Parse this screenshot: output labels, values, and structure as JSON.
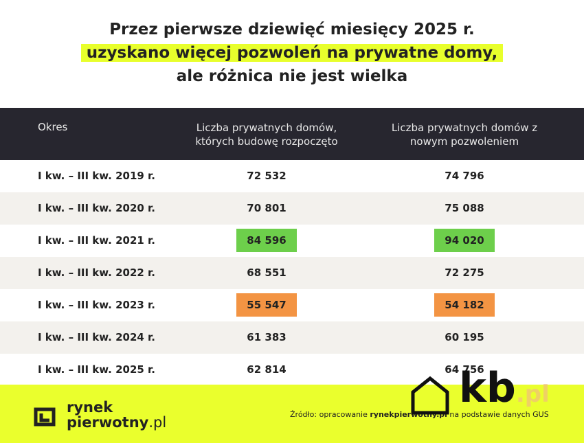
{
  "title": {
    "line1": "Przez pierwsze dziewięć miesięcy 2025 r.",
    "line2": "uzyskano więcej pozwoleń na prywatne domy,",
    "line3": "ale różnica nie jest wielka"
  },
  "table": {
    "header": [
      "Okres",
      "Liczba prywatnych domów, których budowę rozpoczęto",
      "Liczba prywatnych domów z nowym pozwoleniem"
    ],
    "rows": [
      [
        "I kw. – III kw. 2019 r.",
        "72 532",
        "74 796"
      ],
      [
        "I kw. – III kw. 2020 r.",
        "70 801",
        "75 088"
      ],
      [
        "I kw. – III kw. 2021 r.",
        "84 596",
        "94 020"
      ],
      [
        "I kw. – III kw. 2022 r.",
        "68 551",
        "72 275"
      ],
      [
        "I kw. – III kw. 2023 r.",
        "55 547",
        "54 182"
      ],
      [
        "I kw. – III kw. 2024 r.",
        "61 383",
        "60 195"
      ],
      [
        "I kw. – III kw. 2025 r.",
        "62 814",
        "64 756"
      ]
    ]
  },
  "footer": {
    "logo_line1": "rynek",
    "logo_line2": "pierwotny",
    "logo_suffix": ".pl",
    "source_prefix": "Źródło: opracowanie ",
    "source_bold": "rynekpierwotny.pl",
    "source_suffix": " na podstawie danych GUS",
    "watermark": "kb",
    "watermark_suffix": ".pl"
  }
}
